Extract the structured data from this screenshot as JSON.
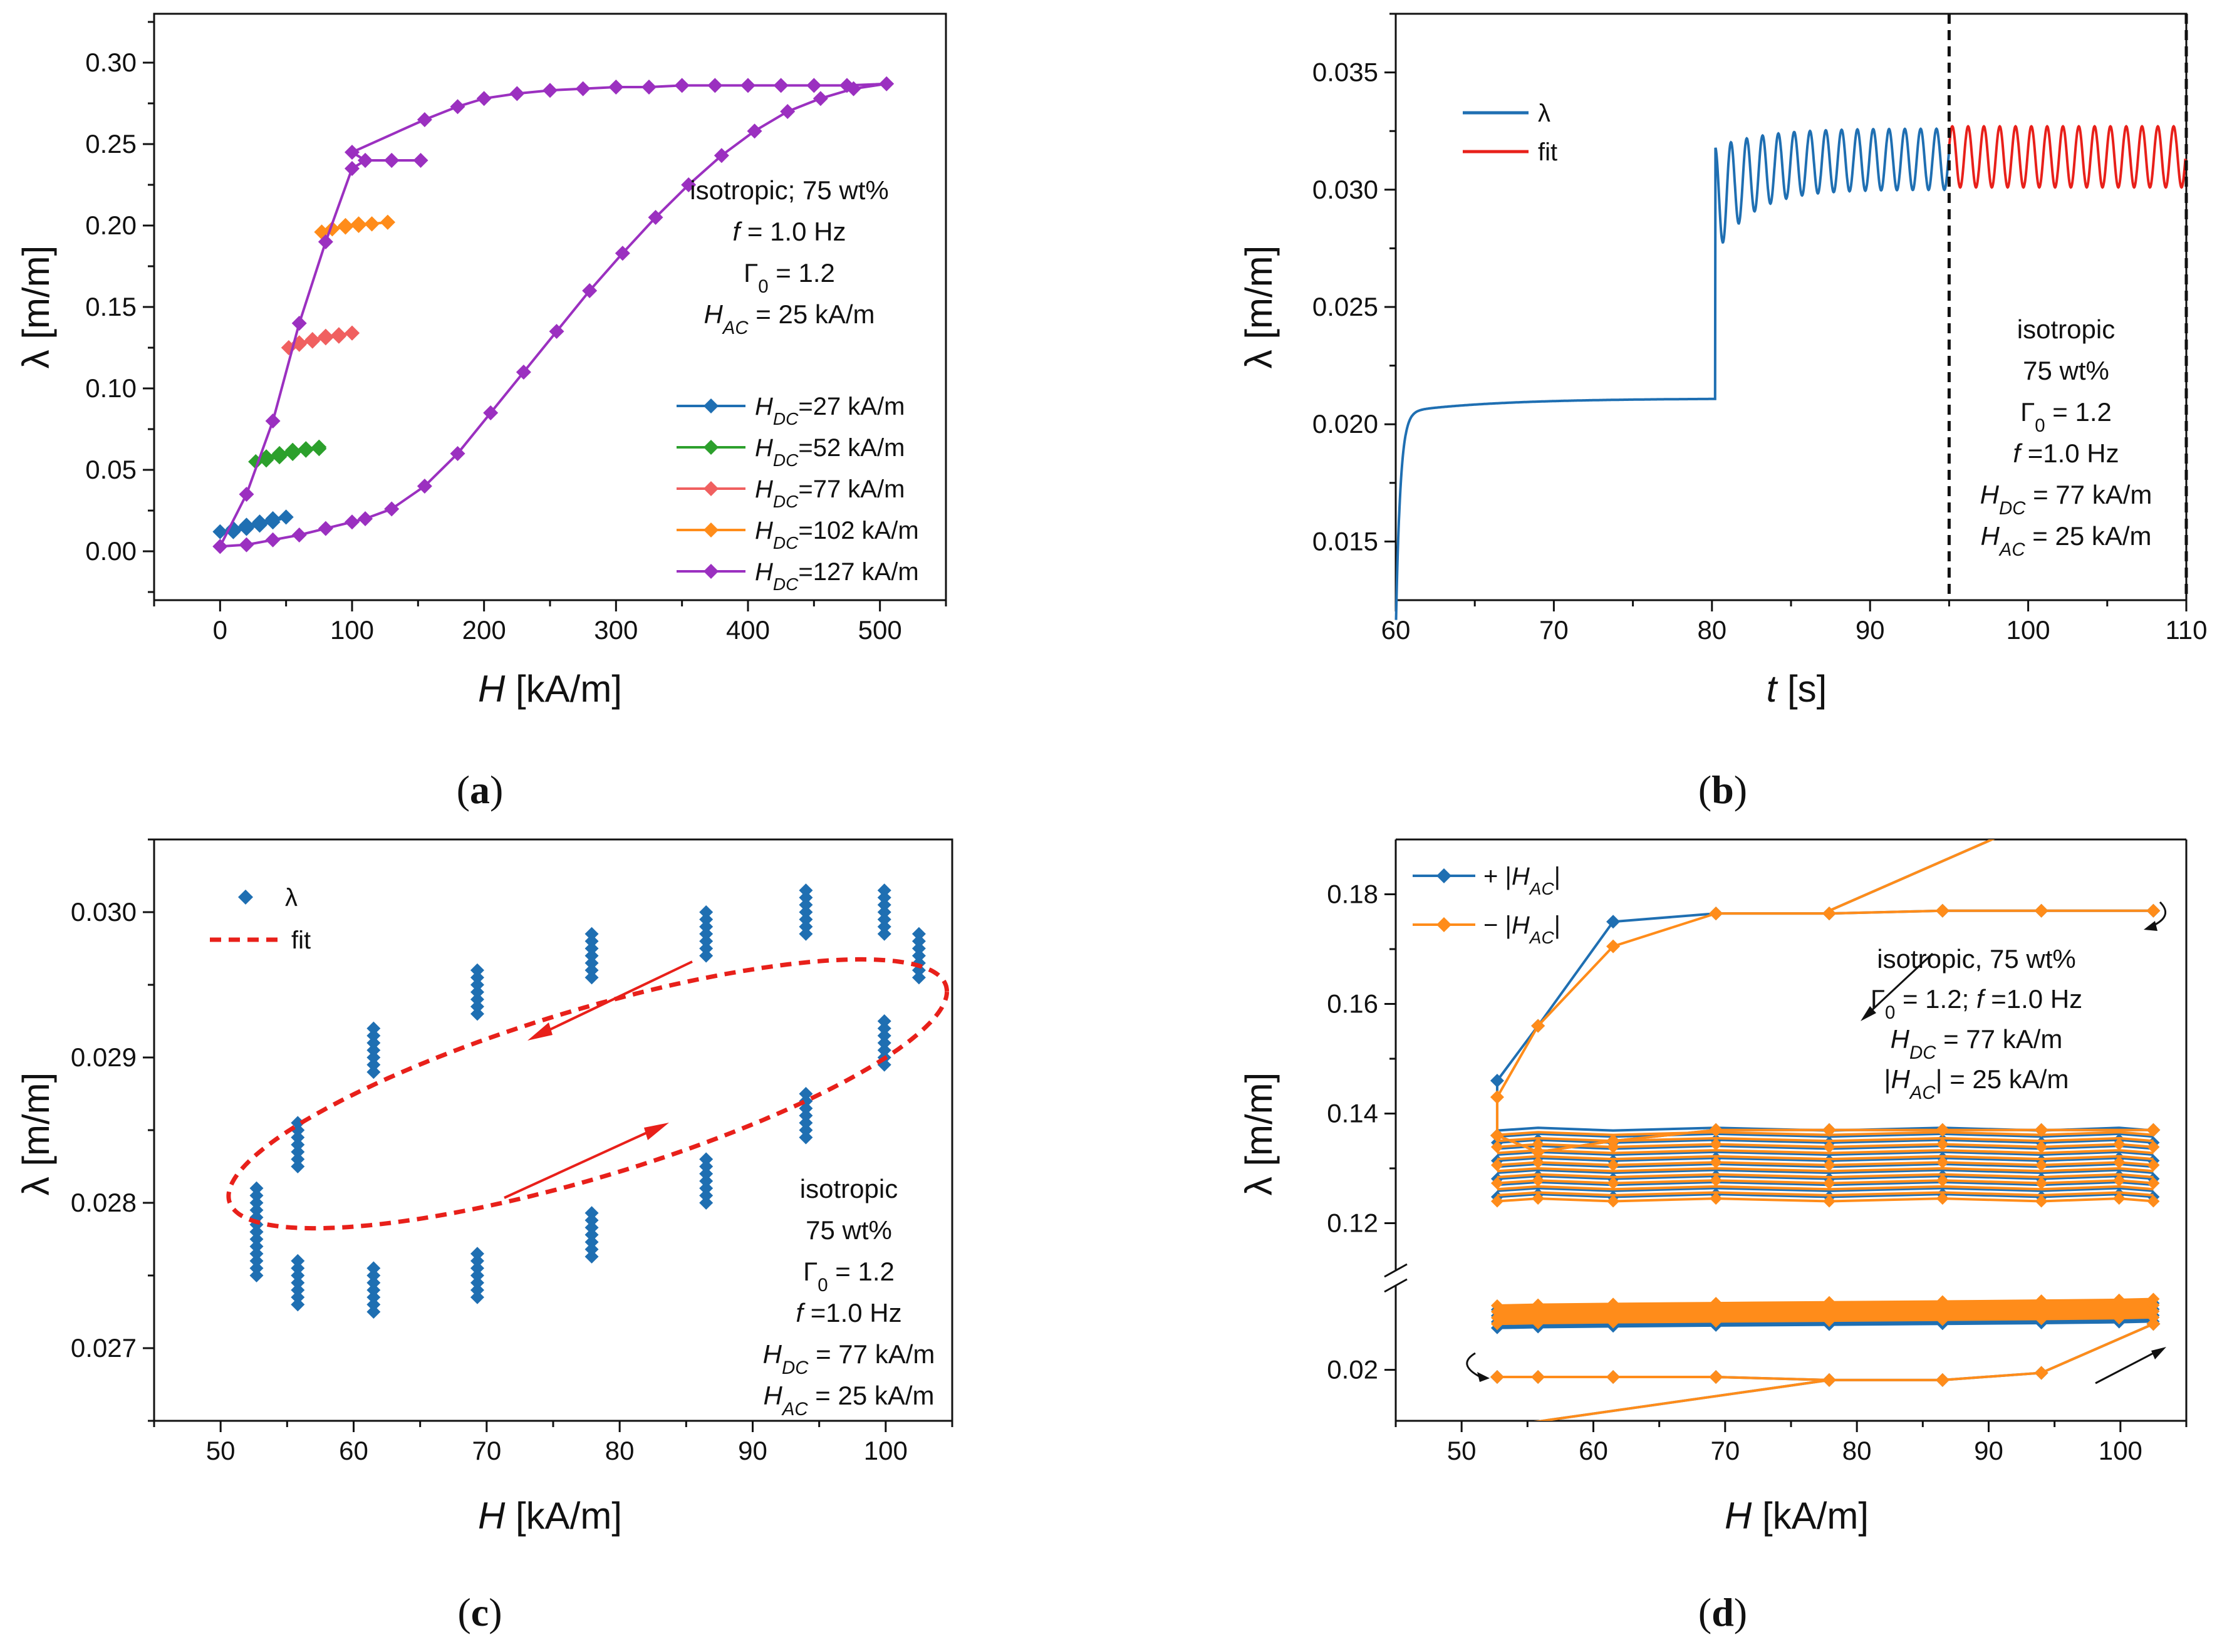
{
  "chart_data": [
    {
      "id": "a",
      "type": "line",
      "panel_label": "(a)",
      "xlabel": "H [kA/m]",
      "ylabel": "λ [m/m]",
      "xlim": [
        -50,
        550
      ],
      "ylim": [
        -0.03,
        0.33
      ],
      "xticks": [
        0,
        100,
        200,
        300,
        400,
        500
      ],
      "yticks": [
        0.0,
        0.05,
        0.1,
        0.15,
        0.2,
        0.25,
        0.3
      ],
      "ytick_labels": [
        "0.00",
        "0.05",
        "0.10",
        "0.15",
        "0.20",
        "0.25",
        "0.30"
      ],
      "annotation": [
        "isotropic; 75 wt%",
        "f = 1.0 Hz",
        "Γ0 = 1.2",
        "HAC = 25 kA/m"
      ],
      "series": [
        {
          "name": "HDC=27 kA/m",
          "color": "#1f6fb2",
          "x": [
            0,
            10,
            20,
            30,
            40,
            50,
            40,
            30,
            20,
            10,
            20,
            30,
            40,
            50
          ],
          "y": [
            0.012,
            0.014,
            0.016,
            0.018,
            0.02,
            0.021,
            0.02,
            0.018,
            0.016,
            0.012,
            0.014,
            0.016,
            0.018,
            0.021
          ]
        },
        {
          "name": "HDC=52 kA/m",
          "color": "#2ca02c",
          "x": [
            27,
            35,
            45,
            55,
            65,
            75,
            65,
            55,
            45,
            35,
            27,
            35,
            45,
            55,
            65,
            75
          ],
          "y": [
            0.055,
            0.058,
            0.06,
            0.062,
            0.063,
            0.064,
            0.063,
            0.062,
            0.06,
            0.058,
            0.055,
            0.056,
            0.058,
            0.06,
            0.062,
            0.063
          ]
        },
        {
          "name": "HDC=77 kA/m",
          "color": "#f06060",
          "x": [
            52,
            60,
            70,
            80,
            90,
            100,
            90,
            80,
            70,
            60,
            52,
            60,
            70,
            80,
            90,
            100
          ],
          "y": [
            0.125,
            0.128,
            0.13,
            0.132,
            0.133,
            0.134,
            0.133,
            0.132,
            0.13,
            0.128,
            0.125,
            0.127,
            0.129,
            0.131,
            0.132,
            0.134
          ]
        },
        {
          "name": "HDC=102 kA/m",
          "color": "#ff8c1a",
          "x": [
            77,
            85,
            95,
            105,
            115,
            127,
            115,
            105,
            95,
            85,
            77,
            85,
            95,
            105,
            115,
            127
          ],
          "y": [
            0.196,
            0.198,
            0.2,
            0.201,
            0.201,
            0.202,
            0.201,
            0.201,
            0.2,
            0.198,
            0.196,
            0.198,
            0.199,
            0.2,
            0.201,
            0.202
          ]
        },
        {
          "name": "HDC=127 kA/m",
          "color": "#9b30c0",
          "x": [
            0,
            20,
            40,
            60,
            80,
            100,
            110,
            130,
            152,
            130,
            110,
            100,
            155,
            180,
            200,
            225,
            250,
            275,
            300,
            325,
            350,
            375,
            400,
            425,
            450,
            475,
            505,
            480,
            455,
            430,
            405,
            380,
            355,
            330,
            305,
            280,
            255,
            230,
            205,
            180,
            155,
            130,
            110,
            100,
            80,
            60,
            40,
            20,
            0
          ],
          "y": [
            0.003,
            0.035,
            0.08,
            0.14,
            0.19,
            0.235,
            0.24,
            0.24,
            0.24,
            0.24,
            0.24,
            0.245,
            0.265,
            0.273,
            0.278,
            0.281,
            0.283,
            0.284,
            0.285,
            0.285,
            0.286,
            0.286,
            0.286,
            0.286,
            0.286,
            0.286,
            0.287,
            0.284,
            0.278,
            0.27,
            0.258,
            0.243,
            0.225,
            0.205,
            0.183,
            0.16,
            0.135,
            0.11,
            0.085,
            0.06,
            0.04,
            0.026,
            0.02,
            0.018,
            0.014,
            0.01,
            0.007,
            0.004,
            0.003
          ]
        }
      ]
    },
    {
      "id": "b",
      "type": "line",
      "panel_label": "(b)",
      "xlabel": "t [s]",
      "ylabel": "λ [m/m]",
      "xlim": [
        60,
        110
      ],
      "ylim": [
        0.0125,
        0.0375
      ],
      "xticks": [
        60,
        70,
        80,
        90,
        100,
        110
      ],
      "yticks": [
        0.015,
        0.02,
        0.025,
        0.03,
        0.035
      ],
      "ytick_labels": [
        "0.015",
        "0.020",
        "0.025",
        "0.030",
        "0.035"
      ],
      "vlines": [
        95,
        110
      ],
      "annotation": [
        "isotropic",
        "75 wt%",
        "Γ0 = 1.2",
        "f =1.0 Hz",
        "HDC = 77 kA/m",
        "HAC = 25 kA/m"
      ],
      "series": [
        {
          "name": "λ",
          "color": "#1f6fb2",
          "description": "creep 60–80 s then oscillation from 80 s to 95 s"
        },
        {
          "name": "fit",
          "color": "#e8201a",
          "description": "sinusoidal fit 95–110 s, mean 0.0314, amplitude 0.0013, 1 Hz"
        }
      ]
    },
    {
      "id": "c",
      "type": "scatter",
      "panel_label": "(c)",
      "xlabel": "H [kA/m]",
      "ylabel": "λ [m/m]",
      "xlim": [
        45,
        105
      ],
      "ylim": [
        0.0265,
        0.0305
      ],
      "xticks": [
        50,
        60,
        70,
        80,
        90,
        100
      ],
      "yticks": [
        0.027,
        0.028,
        0.029,
        0.03
      ],
      "ytick_labels": [
        "0.027",
        "0.028",
        "0.029",
        "0.030"
      ],
      "annotation": [
        "isotropic",
        "75 wt%",
        "Γ0 = 1.2",
        "f =1.0 Hz",
        "HDC = 77 kA/m",
        "HAC = 25 kA/m"
      ],
      "series": [
        {
          "name": "λ",
          "color": "#1f6fb2",
          "points_x": [
            52.7,
            55.8,
            61.5,
            69.3,
            77.9,
            86.5,
            94.0,
            99.9,
            102.5,
            99.9,
            94.0,
            86.5,
            77.9,
            69.3,
            61.5,
            55.8,
            52.7
          ],
          "points_y": [
            0.02765,
            0.02745,
            0.0274,
            0.0275,
            0.02778,
            0.02815,
            0.0286,
            0.0291,
            0.0297,
            0.03,
            0.03,
            0.02985,
            0.0297,
            0.02945,
            0.02905,
            0.0284,
            0.02795
          ]
        },
        {
          "name": "fit",
          "color": "#e8201a",
          "ellipse": {
            "cx": 77.6,
            "cy": 0.02875,
            "rx": 27.0,
            "ry": 0.0006,
            "tilt": 0.00032
          }
        }
      ]
    },
    {
      "id": "d",
      "type": "line",
      "panel_label": "(d)",
      "xlabel": "H [kA/m]",
      "ylabel": "λ [m/m]",
      "xlim": [
        45,
        105
      ],
      "yticks_upper": [
        0.12,
        0.14,
        0.16,
        0.18
      ],
      "yticks_lower": [
        0.02
      ],
      "annotation": [
        "isotropic, 75 wt%",
        "Γ0 = 1.2; f =1.0 Hz",
        "HDC = 77 kA/m",
        "|HAC| = 25 kA/m"
      ],
      "series": [
        {
          "name": "+ |HAC|",
          "color": "#1f6fb2"
        },
        {
          "name": "− |HAC|",
          "color": "#ff8c1a"
        }
      ]
    }
  ]
}
